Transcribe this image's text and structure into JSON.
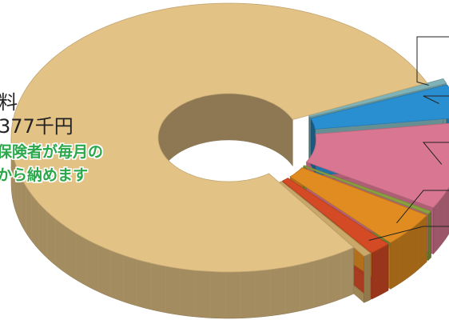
{
  "chart_data": {
    "type": "pie",
    "style": "3d-donut",
    "slices": [
      {
        "name": "",
        "value": 0.6,
        "color": "#7fb3b8"
      },
      {
        "name": "",
        "value": 4.0,
        "color": "#2a8fd0"
      },
      {
        "name": "",
        "value": 10.5,
        "color": "#d97792"
      },
      {
        "name": "",
        "value": 0.4,
        "color": "#8aa040"
      },
      {
        "name": "",
        "value": 4.2,
        "color": "#e08c20"
      },
      {
        "name": "",
        "value": 1.6,
        "color": "#d34a25"
      },
      {
        "name": "",
        "value": 0.6,
        "color": "#c9a86a"
      },
      {
        "name": "",
        "value": 78.1,
        "color": "#e3c286"
      }
    ],
    "annotation": {
      "line1": "料",
      "line2": "377千円",
      "line3": "保険者が毎月の",
      "line4": "から納めます"
    }
  },
  "colors": {
    "annotation_text": "#222222",
    "annotation_green": "#2aa84a"
  }
}
